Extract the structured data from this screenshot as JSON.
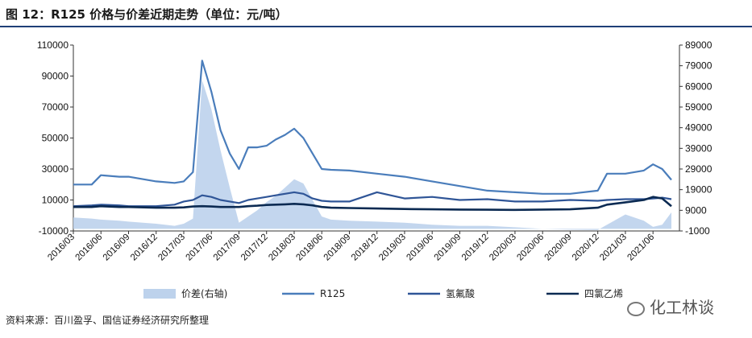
{
  "title": "图 12：R125 价格与价差近期走势（单位：元/吨）",
  "footer": "资料来源：百川盈孚、国信证券经济研究所整理",
  "watermark": "化工林谈",
  "watermark_icon": "wechat-icon",
  "colors": {
    "spread": "#bdd2ec",
    "r125": "#4a7dbb",
    "hf": "#2f5597",
    "pce": "#0b2a52",
    "title_rule": "#1f3f77"
  },
  "chart_data": {
    "type": "line",
    "title": "图 12：R125 价格与价差近期走势（单位：元/吨）",
    "grid": false,
    "legend_position": "bottom",
    "left_axis": {
      "min": -10000,
      "max": 110000,
      "step": 20000,
      "ticks": [
        "-10000",
        "10000",
        "30000",
        "50000",
        "70000",
        "90000",
        "110000"
      ]
    },
    "right_axis": {
      "min": -1000,
      "max": 89000,
      "step": 10000,
      "ticks": [
        "-1000",
        "9000",
        "19000",
        "29000",
        "39000",
        "49000",
        "59000",
        "69000",
        "79000",
        "89000"
      ]
    },
    "x_ticks": [
      "2016/03",
      "2016/06",
      "2016/09",
      "2016/12",
      "2017/03",
      "2017/06",
      "2017/09",
      "2017/12",
      "2018/03",
      "2018/06",
      "2018/09",
      "2018/12",
      "2019/03",
      "2019/06",
      "2019/09",
      "2019/12",
      "2020/03",
      "2020/06",
      "2020/09",
      "2020/12",
      "2021/03",
      "2021/06"
    ],
    "x": [
      "2016/03",
      "2016/05",
      "2016/06",
      "2016/08",
      "2016/09",
      "2016/12",
      "2017/02",
      "2017/03",
      "2017/04",
      "2017/05",
      "2017/06",
      "2017/07",
      "2017/08",
      "2017/09",
      "2017/10",
      "2017/11",
      "2017/12",
      "2018/01",
      "2018/02",
      "2018/03",
      "2018/04",
      "2018/05",
      "2018/06",
      "2018/07",
      "2018/09",
      "2018/12",
      "2019/03",
      "2019/06",
      "2019/09",
      "2019/12",
      "2020/03",
      "2020/06",
      "2020/09",
      "2020/12",
      "2021/01",
      "2021/03",
      "2021/05",
      "2021/06",
      "2021/07",
      "2021/08"
    ],
    "series": [
      {
        "name": "价差(右轴)",
        "axis": "right",
        "style": "area",
        "values": [
          5500,
          5000,
          4500,
          4000,
          3500,
          2500,
          1500,
          2500,
          5000,
          72000,
          58000,
          38000,
          20000,
          3000,
          6000,
          9000,
          13000,
          16000,
          20000,
          24000,
          22000,
          14000,
          6000,
          4500,
          4000,
          3500,
          3000,
          2000,
          1500,
          1500,
          800,
          0,
          -300,
          -500,
          2000,
          7000,
          4000,
          1000,
          2000,
          8000
        ]
      },
      {
        "name": "R125",
        "axis": "left",
        "values": [
          20000,
          20000,
          26000,
          25000,
          25000,
          22000,
          21000,
          22000,
          28000,
          100000,
          80000,
          55000,
          40000,
          30000,
          44000,
          44000,
          45000,
          49000,
          52000,
          56000,
          50000,
          40000,
          30000,
          29500,
          29000,
          27000,
          25000,
          22000,
          19000,
          16000,
          15000,
          14000,
          14000,
          16000,
          27000,
          27000,
          29000,
          33000,
          30000,
          23000
        ]
      },
      {
        "name": "氢氟酸",
        "axis": "left",
        "values": [
          6000,
          6500,
          7000,
          6500,
          6000,
          6000,
          7000,
          9000,
          10000,
          13000,
          12000,
          10000,
          9000,
          8000,
          10000,
          11000,
          12000,
          13000,
          14000,
          15000,
          14000,
          11000,
          9500,
          9000,
          9000,
          15000,
          11000,
          12000,
          10000,
          10500,
          9000,
          9000,
          10000,
          9500,
          10000,
          10500,
          10500,
          11000,
          11500,
          10500
        ]
      },
      {
        "name": "四氯乙烯",
        "axis": "left",
        "values": [
          5500,
          5500,
          6000,
          5500,
          5500,
          5000,
          5000,
          5200,
          5800,
          6000,
          5800,
          5500,
          5500,
          5500,
          6000,
          6300,
          6800,
          7000,
          7200,
          7500,
          7200,
          6500,
          5500,
          5000,
          4800,
          4500,
          4200,
          4000,
          3800,
          3700,
          3600,
          3800,
          4000,
          5000,
          7000,
          8500,
          10000,
          12000,
          11000,
          6000
        ]
      }
    ]
  }
}
